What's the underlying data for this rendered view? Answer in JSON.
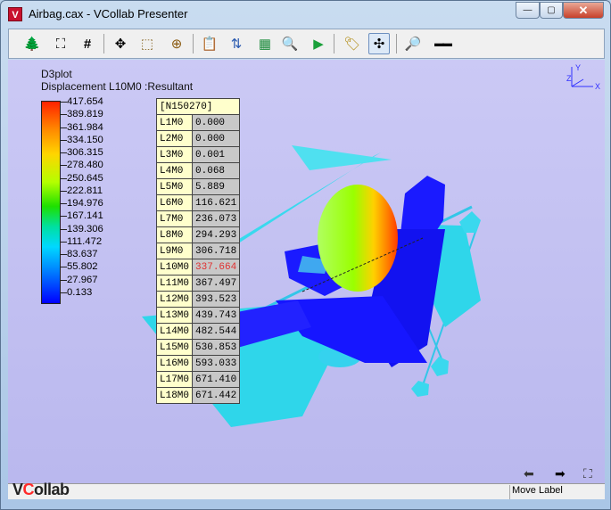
{
  "window": {
    "title": "Airbag.cax - VCollab Presenter",
    "icon_letter": "V"
  },
  "window_controls": {
    "minimize": "—",
    "maximize": "▢",
    "close": "✕"
  },
  "toolbar": {
    "buttons": [
      {
        "name": "tree-icon",
        "glyph": "🌲"
      },
      {
        "name": "fit-view-icon",
        "glyph": "⛶"
      },
      {
        "name": "grid-icon",
        "glyph": "#"
      },
      {
        "name": "expand-icon",
        "glyph": "✥"
      },
      {
        "name": "box-icon",
        "glyph": "⬚"
      },
      {
        "name": "section-icon",
        "glyph": "⊕"
      },
      {
        "name": "notes-icon",
        "glyph": "📋"
      },
      {
        "name": "sort-icon",
        "glyph": "⇅"
      },
      {
        "name": "contour-icon",
        "glyph": "▦"
      },
      {
        "name": "probe-icon",
        "glyph": "🔍"
      },
      {
        "name": "play-icon",
        "glyph": "▶"
      },
      {
        "name": "label-icon",
        "glyph": "🏷"
      },
      {
        "name": "move-label-icon",
        "glyph": "✣"
      },
      {
        "name": "zoom-icon",
        "glyph": "🔎"
      },
      {
        "name": "dots-icon",
        "glyph": "▬▬"
      }
    ]
  },
  "viewport": {
    "plot_title": "D3plot",
    "result_label": "Displacement L10M0 :Resultant",
    "legend": [
      "417.654",
      "389.819",
      "361.984",
      "334.150",
      "306.315",
      "278.480",
      "250.645",
      "222.811",
      "194.976",
      "167.141",
      "139.306",
      "111.472",
      "83.637",
      "55.802",
      "27.967",
      "0.133"
    ],
    "node_table": {
      "header": "[N150270]",
      "rows": [
        {
          "step": "L1M0",
          "value": "0.000"
        },
        {
          "step": "L2M0",
          "value": "0.000"
        },
        {
          "step": "L3M0",
          "value": "0.001"
        },
        {
          "step": "L4M0",
          "value": "0.068"
        },
        {
          "step": "L5M0",
          "value": "5.889"
        },
        {
          "step": "L6M0",
          "value": "116.621"
        },
        {
          "step": "L7M0",
          "value": "236.073"
        },
        {
          "step": "L8M0",
          "value": "294.293"
        },
        {
          "step": "L9M0",
          "value": "306.718"
        },
        {
          "step": "L10M0",
          "value": "337.664",
          "highlight": true
        },
        {
          "step": "L11M0",
          "value": "367.497"
        },
        {
          "step": "L12M0",
          "value": "393.523"
        },
        {
          "step": "L13M0",
          "value": "439.743"
        },
        {
          "step": "L14M0",
          "value": "482.544"
        },
        {
          "step": "L15M0",
          "value": "530.853"
        },
        {
          "step": "L16M0",
          "value": "593.033"
        },
        {
          "step": "L17M0",
          "value": "671.410"
        },
        {
          "step": "L18M0",
          "value": "671.442"
        }
      ]
    },
    "axis_labels": {
      "x": "X",
      "y": "Y",
      "z": "Z"
    },
    "nav": {
      "back": "⬅",
      "forward": "➡",
      "fullscreen": "⛶"
    }
  },
  "status": {
    "text": "Move Label"
  },
  "logo": {
    "text": "VCollab"
  },
  "colors": {
    "highlight": "#e03030",
    "legend_high": "#ff2200",
    "legend_low": "#0000ff",
    "model_blue": "#1a1aff",
    "model_cyan": "#40e0f0"
  }
}
